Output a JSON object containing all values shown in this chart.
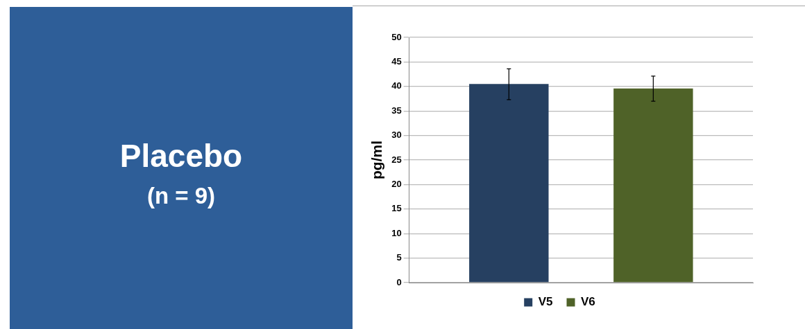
{
  "chart_data": {
    "type": "bar",
    "title": "Placebo",
    "subtitle": "(n = 9)",
    "ylabel": "pg/ml",
    "categories": [
      null
    ],
    "series": [
      {
        "name": "V5",
        "color": "#264061",
        "values": [
          40.5
        ],
        "errors": [
          [
            37.3,
            43.6
          ]
        ]
      },
      {
        "name": "V6",
        "color": "#4f6228",
        "values": [
          39.6
        ],
        "errors": [
          [
            37.0,
            42.1
          ]
        ]
      }
    ],
    "ylim": [
      0,
      50
    ],
    "yticks": [
      0,
      5,
      10,
      15,
      20,
      25,
      30,
      35,
      40,
      45,
      50
    ],
    "grid": "y",
    "legend": "bottom",
    "tick_labels": "y"
  }
}
